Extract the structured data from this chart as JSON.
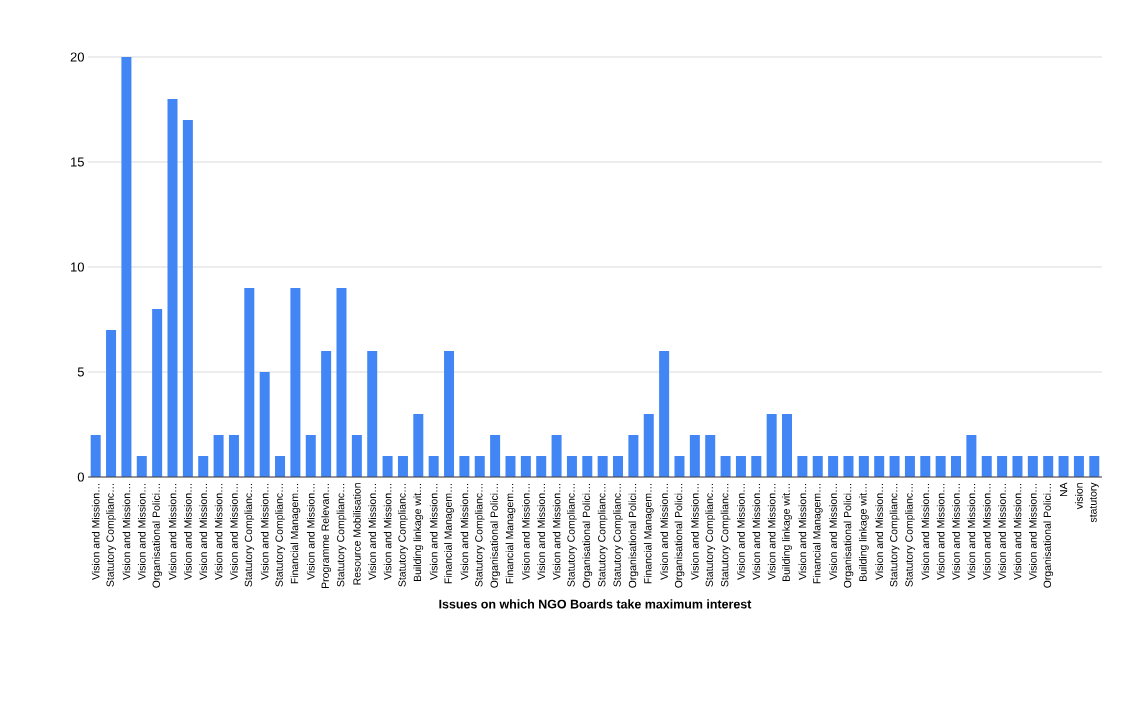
{
  "chart_data": {
    "type": "bar",
    "xlabel": "Issues on which NGO Boards take maximum interest",
    "categories": [
      "Vision and Mission…",
      "Statutory Complianc…",
      "Vision and Mission…",
      "Vision and Mission…",
      "Organisational Polici…",
      "Vision and Mission…",
      "Vision and Mission…",
      "Vision and Mission…",
      "Vision and Mission…",
      "Vision and Mission…",
      "Statutory Complianc…",
      "Vision and Mission…",
      "Statutory Complianc…",
      "Financial Managem…",
      "Vision and Mission…",
      "Programme Relevan…",
      "Statutory Complianc…",
      "Resource Mobilisation",
      "Vision and Mission…",
      "Vision and Mission…",
      "Statutory Complianc…",
      "Building linkage wit…",
      "Vision and Mission…",
      "Financial Managem…",
      "Vision and Mission…",
      "Statutory Complianc…",
      "Organisational Polici…",
      "Financial Managem…",
      "Vision and Mission…",
      "Vision and Mission…",
      "Vision and Mission…",
      "Statutory Complianc…",
      "Organisational Polici…",
      "Statutory Complianc…",
      "Statutory Complianc…",
      "Organisational Polici…",
      "Financial Managem…",
      "Vision and Mission…",
      "Organisational Polici…",
      "Vision and Mission…",
      "Statutory Complianc…",
      "Statutory Complianc…",
      "Vision and Mission…",
      "Vision and Mission…",
      "Vision and Mission…",
      "Building linkage wit…",
      "Vision and Mission…",
      "Financial Managem…",
      "Vision and Mission…",
      "Organisational Polici…",
      "Building linkage wit…",
      "Vision and Mission…",
      "Statutory Complianc…",
      "Statutory Complianc…",
      "Vision and Mission…",
      "Vision and Mission…",
      "Vision and Mission…",
      "Vision and Mission…",
      "Vision and Mission…",
      "Vision and Mission…",
      "Vision and Mission…",
      "Vision and Mission…",
      "Organisational Polici…",
      "NA",
      "vision",
      "statutory"
    ],
    "values": [
      2,
      7,
      20,
      1,
      8,
      18,
      17,
      1,
      2,
      2,
      9,
      5,
      1,
      9,
      2,
      6,
      9,
      2,
      6,
      1,
      1,
      3,
      1,
      6,
      1,
      1,
      2,
      1,
      1,
      1,
      2,
      1,
      1,
      1,
      1,
      2,
      3,
      6,
      1,
      2,
      2,
      1,
      1,
      1,
      3,
      3,
      1,
      1,
      1,
      1,
      1,
      1,
      1,
      1,
      1,
      1,
      1,
      2,
      1,
      1,
      1,
      1,
      1,
      1,
      1,
      1
    ],
    "color": "#4285f4",
    "ylim": [
      0,
      20
    ],
    "yticks": [
      0,
      5,
      10,
      15,
      20
    ],
    "grid": "y"
  }
}
